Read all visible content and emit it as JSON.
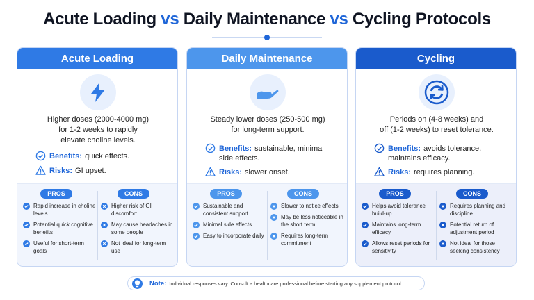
{
  "title": {
    "part1": "Acute Loading",
    "vs1": "vs",
    "part2": "Daily Maintenance",
    "vs2": "vs",
    "part3": "Cycling Protocols"
  },
  "cards": [
    {
      "header": "Acute Loading",
      "icon": "lightning-icon",
      "desc": [
        "Higher doses (2000-4000 mg)",
        "for 1-2 weeks to rapidly",
        "elevate choline levels."
      ],
      "benefits_label": "Benefits:",
      "benefits": "quick effects.",
      "risks_label": "Risks:",
      "risks": "GI upset.",
      "pros_label": "PROS",
      "cons_label": "CONS",
      "pros": [
        "Rapid increase in choline levels",
        "Potential quick cognitive benefits",
        "Useful for short-term goals"
      ],
      "cons": [
        "Higher risk of GI discomfort",
        "May cause headaches in some people",
        "Not ideal for long-term use"
      ]
    },
    {
      "header": "Daily Maintenance",
      "icon": "open-hand-icon",
      "desc": [
        "Steady lower doses (250-500 mg)",
        "for long-term support."
      ],
      "benefits_label": "Benefits:",
      "benefits": "sustainable, minimal side effects.",
      "risks_label": "Risks:",
      "risks": "slower onset.",
      "pros_label": "PROS",
      "cons_label": "CONS",
      "pros": [
        "Sustainable and consistent support",
        "Minimal side effects",
        "Easy to incorporate daily"
      ],
      "cons": [
        "Slower to notice effects",
        "May be less noticeable in the short term",
        "Requires long-term commitment"
      ]
    },
    {
      "header": "Cycling",
      "icon": "cycle-arrows-icon",
      "desc": [
        "Periods on (4-8 weeks) and",
        "off (1-2 weeks) to reset tolerance."
      ],
      "benefits_label": "Benefits:",
      "benefits": "avoids tolerance, maintains efficacy.",
      "risks_label": "Risks:",
      "risks": "requires planning.",
      "pros_label": "PROS",
      "cons_label": "CONS",
      "pros": [
        "Helps avoid tolerance build-up",
        "Maintains long-term efficacy",
        "Allows reset periods for sensitivity"
      ],
      "cons": [
        "Requires planning and discipline",
        "Potential return of adjustment period",
        "Not ideal for those seeking consistency"
      ]
    }
  ],
  "note": {
    "label": "Note:",
    "text": "Individual responses vary. Consult a healthcare professional before starting any supplement protocol."
  },
  "colors": {
    "accent": "#1f66d8",
    "card1": "#2f7ae5",
    "card2": "#4d96ec",
    "card3": "#1a5bcc"
  }
}
